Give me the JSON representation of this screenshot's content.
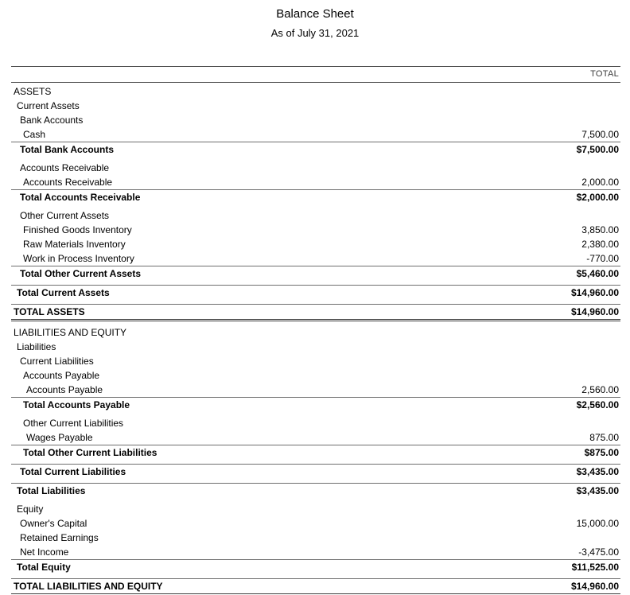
{
  "report": {
    "title": "Balance Sheet",
    "subtitle": "As of July 31, 2021"
  },
  "table": {
    "column_header": "TOTAL",
    "rows": [
      {
        "label": "ASSETS",
        "value": "",
        "indent": 0,
        "style": "plain",
        "gap": false
      },
      {
        "label": "Current Assets",
        "value": "",
        "indent": 1,
        "style": "plain",
        "gap": false
      },
      {
        "label": "Bank Accounts",
        "value": "",
        "indent": 2,
        "style": "plain",
        "gap": false
      },
      {
        "label": "Cash",
        "value": "7,500.00",
        "indent": 3,
        "style": "plain",
        "gap": false
      },
      {
        "label": "Total Bank Accounts",
        "value": "$7,500.00",
        "indent": 2,
        "style": "total",
        "gap": false
      },
      {
        "label": "Accounts Receivable",
        "value": "",
        "indent": 2,
        "style": "plain",
        "gap": true
      },
      {
        "label": "Accounts Receivable",
        "value": "2,000.00",
        "indent": 3,
        "style": "plain",
        "gap": false
      },
      {
        "label": "Total Accounts Receivable",
        "value": "$2,000.00",
        "indent": 2,
        "style": "total",
        "gap": false
      },
      {
        "label": "Other Current Assets",
        "value": "",
        "indent": 2,
        "style": "plain",
        "gap": true
      },
      {
        "label": "Finished Goods Inventory",
        "value": "3,850.00",
        "indent": 3,
        "style": "plain",
        "gap": false
      },
      {
        "label": "Raw Materials Inventory",
        "value": "2,380.00",
        "indent": 3,
        "style": "plain",
        "gap": false
      },
      {
        "label": "Work in Process Inventory",
        "value": "-770.00",
        "indent": 3,
        "style": "plain",
        "gap": false
      },
      {
        "label": "Total Other Current Assets",
        "value": "$5,460.00",
        "indent": 2,
        "style": "total",
        "gap": false
      },
      {
        "label": "Total Current Assets",
        "value": "$14,960.00",
        "indent": 1,
        "style": "total",
        "gap": true
      },
      {
        "label": "TOTAL ASSETS",
        "value": "$14,960.00",
        "indent": 0,
        "style": "grand",
        "gap": true
      },
      {
        "label": "LIABILITIES AND EQUITY",
        "value": "",
        "indent": 0,
        "style": "plain",
        "gap": true
      },
      {
        "label": "Liabilities",
        "value": "",
        "indent": 1,
        "style": "plain",
        "gap": false
      },
      {
        "label": "Current Liabilities",
        "value": "",
        "indent": 2,
        "style": "plain",
        "gap": false
      },
      {
        "label": "Accounts Payable",
        "value": "",
        "indent": 3,
        "style": "plain",
        "gap": false
      },
      {
        "label": "Accounts Payable",
        "value": "2,560.00",
        "indent": 4,
        "style": "plain",
        "gap": false
      },
      {
        "label": "Total Accounts Payable",
        "value": "$2,560.00",
        "indent": 3,
        "style": "total",
        "gap": false
      },
      {
        "label": "Other Current Liabilities",
        "value": "",
        "indent": 3,
        "style": "plain",
        "gap": true
      },
      {
        "label": "Wages Payable",
        "value": "875.00",
        "indent": 4,
        "style": "plain",
        "gap": false
      },
      {
        "label": "Total Other Current Liabilities",
        "value": "$875.00",
        "indent": 3,
        "style": "total",
        "gap": false
      },
      {
        "label": "Total Current Liabilities",
        "value": "$3,435.00",
        "indent": 2,
        "style": "total",
        "gap": true
      },
      {
        "label": "Total Liabilities",
        "value": "$3,435.00",
        "indent": 1,
        "style": "total",
        "gap": true
      },
      {
        "label": "Equity",
        "value": "",
        "indent": 1,
        "style": "plain",
        "gap": true
      },
      {
        "label": "Owner's Capital",
        "value": "15,000.00",
        "indent": 2,
        "style": "plain",
        "gap": false
      },
      {
        "label": "Retained Earnings",
        "value": "",
        "indent": 2,
        "style": "plain",
        "gap": false
      },
      {
        "label": "Net Income",
        "value": "-3,475.00",
        "indent": 2,
        "style": "plain",
        "gap": false
      },
      {
        "label": "Total Equity",
        "value": "$11,525.00",
        "indent": 1,
        "style": "total",
        "gap": false
      },
      {
        "label": "TOTAL LIABILITIES AND EQUITY",
        "value": "$14,960.00",
        "indent": 0,
        "style": "grand",
        "gap": true
      }
    ]
  }
}
